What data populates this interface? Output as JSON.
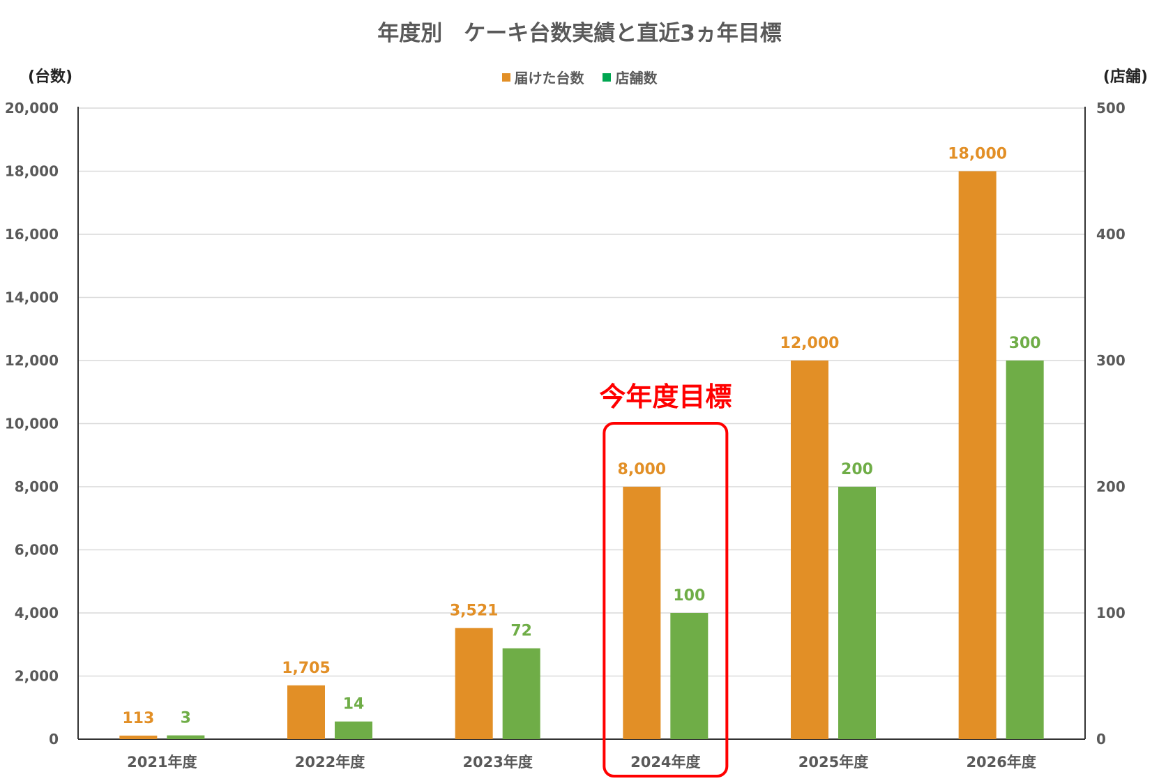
{
  "chart_data": {
    "type": "bar",
    "title": "年度別　ケーキ台数実績と直近3ヵ年目標",
    "ylabel_left": "(台数)",
    "ylabel_right": "(店舗)",
    "categories": [
      "2021年度",
      "2022年度",
      "2023年度",
      "2024年度",
      "2025年度",
      "2026年度"
    ],
    "series": [
      {
        "name": "届けた台数",
        "axis": "left",
        "color": "#E28F26",
        "values": [
          113,
          1705,
          3521,
          8000,
          12000,
          18000
        ],
        "labels": [
          "113",
          "1,705",
          "3,521",
          "8,000",
          "12,000",
          "18,000"
        ]
      },
      {
        "name": "店舗数",
        "axis": "right",
        "color": "#6FAD47",
        "legend_color": "#00A651",
        "values": [
          3,
          14,
          72,
          100,
          200,
          300
        ],
        "labels": [
          "3",
          "14",
          "72",
          "100",
          "200",
          "300"
        ]
      }
    ],
    "ylim_left": [
      0,
      20000
    ],
    "ylim_right": [
      0,
      500
    ],
    "yticks_left": [
      "0",
      "2,000",
      "4,000",
      "6,000",
      "8,000",
      "10,000",
      "12,000",
      "14,000",
      "16,000",
      "18,000",
      "20,000"
    ],
    "yticks_right": [
      "0",
      "100",
      "200",
      "300",
      "400",
      "500"
    ],
    "grid": true,
    "legend_position": "top",
    "annotation": {
      "text": "今年度目標",
      "category_index": 3,
      "color": "#FF0000"
    }
  }
}
